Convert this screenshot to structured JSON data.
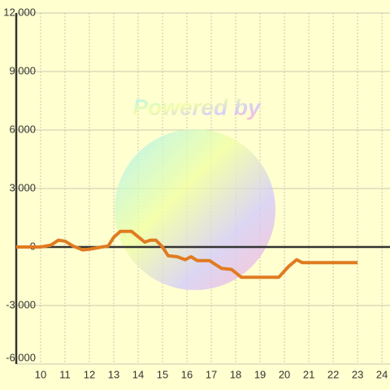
{
  "chart_data": {
    "type": "line",
    "watermark": "Powered by",
    "x": [
      9,
      10,
      10.43,
      10.73,
      11,
      11.33,
      11.73,
      12.07,
      12.5,
      12.77,
      13,
      13.27,
      13.73,
      14.27,
      14.5,
      14.73,
      15,
      15.23,
      15.6,
      15.93,
      16.17,
      16.43,
      16.93,
      17.17,
      17.43,
      17.83,
      18.23,
      19.77,
      20.17,
      20.5,
      20.73,
      23
    ],
    "series": [
      {
        "color": "#e07b20",
        "values": [
          0,
          0,
          100,
          350,
          300,
          50,
          -150,
          -100,
          0,
          50,
          500,
          800,
          800,
          250,
          350,
          350,
          0,
          -450,
          -500,
          -650,
          -500,
          -700,
          -700,
          -900,
          -1100,
          -1150,
          -1550,
          -1550,
          -1000,
          -650,
          -800,
          -800
        ]
      }
    ],
    "xlim": [
      9,
      24.33
    ],
    "xticks": [
      10,
      11,
      12,
      13,
      14,
      15,
      16,
      17,
      18,
      19,
      20,
      21,
      22,
      23,
      24
    ],
    "ylim": [
      -6000,
      12000
    ],
    "yticks": [
      {
        "value": -6000,
        "label": "-6,000"
      },
      {
        "value": -3000,
        "label": "-3,000"
      },
      0,
      {
        "value": 3000,
        "label": "3,000"
      },
      {
        "value": 6000,
        "label": "6,000"
      },
      {
        "value": 9000,
        "label": "9,000"
      },
      {
        "value": 12000,
        "label": "12,000"
      }
    ],
    "grid": true
  }
}
